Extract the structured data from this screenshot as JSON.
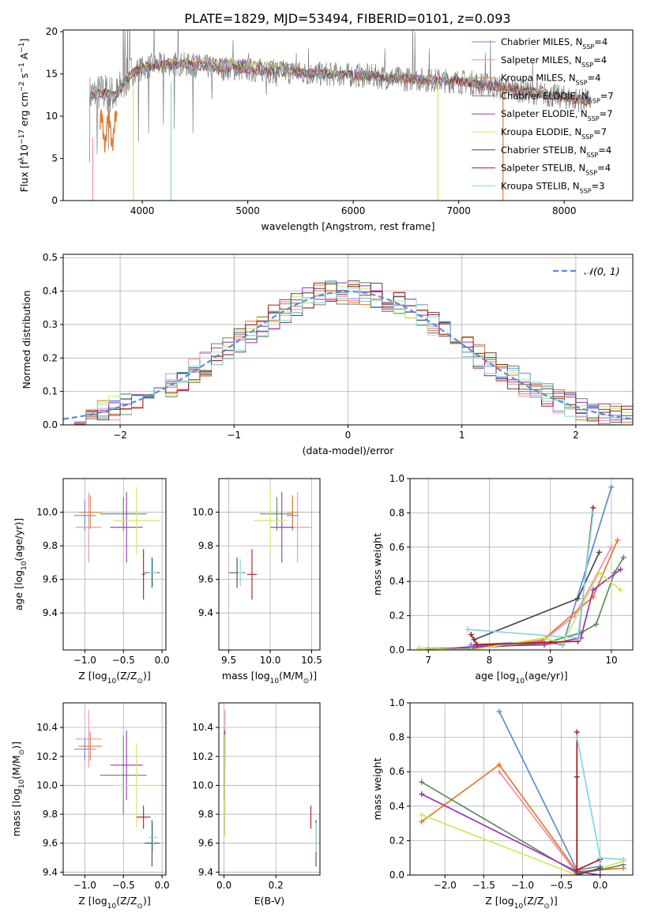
{
  "figure": {
    "title": "PLATE=1829, MJD=53494, FIBERID=0101, z=0.093"
  },
  "colors": {
    "Chabrier MILES": "#5b8bd9",
    "Salpeter MILES": "#f08cb4",
    "Kroupa MILES": "#e8792a",
    "Chabrier ELODIE": "#5f8c5a",
    "Salpeter ELODIE": "#9b2fc0",
    "Kroupa ELODIE": "#cfe85a",
    "Chabrier STELIB": "#4a4a4a",
    "Salpeter STELIB": "#b01818",
    "Kroupa STELIB": "#7fd8df",
    "data": "#808080",
    "normal": "#5b8bd9"
  },
  "chart_data": [
    {
      "id": "spectrum",
      "type": "line",
      "xlabel": "wavelength [Angstrom, rest frame]",
      "ylabel_parts": [
        "Flux [f",
        "λ",
        "10",
        "−17",
        " erg cm",
        "−2",
        " s",
        "−1",
        " A",
        "−1",
        "]"
      ],
      "xlim": [
        3250,
        8650
      ],
      "ylim": [
        0,
        20.2
      ],
      "xticks": [
        4000,
        5000,
        6000,
        7000,
        8000
      ],
      "yticks": [
        0,
        5,
        10,
        15,
        20
      ],
      "grid": false,
      "legend_position": "top-right",
      "legend": [
        {
          "name": "Chabrier MILES",
          "nssp": "4"
        },
        {
          "name": "Salpeter MILES",
          "nssp": "4"
        },
        {
          "name": "Kroupa MILES",
          "nssp": "4"
        },
        {
          "name": "Chabrier ELODIE",
          "nssp": "7"
        },
        {
          "name": "Salpeter ELODIE",
          "nssp": "7"
        },
        {
          "name": "Kroupa ELODIE",
          "nssp": "7"
        },
        {
          "name": "Chabrier STELIB",
          "nssp": "4"
        },
        {
          "name": "Salpeter STELIB",
          "nssp": "4"
        },
        {
          "name": "Kroupa STELIB",
          "nssp": "3"
        }
      ],
      "continuum": [
        [
          3500,
          12.5
        ],
        [
          3650,
          12.8
        ],
        [
          3750,
          12.4
        ],
        [
          3850,
          14.5
        ],
        [
          3950,
          15.5
        ],
        [
          4100,
          16.0
        ],
        [
          4300,
          16.2
        ],
        [
          4500,
          16.0
        ],
        [
          4700,
          15.7
        ],
        [
          4900,
          15.6
        ],
        [
          5100,
          15.4
        ],
        [
          5300,
          15.3
        ],
        [
          5500,
          15.1
        ],
        [
          5700,
          15.0
        ],
        [
          5900,
          14.9
        ],
        [
          6100,
          14.8
        ],
        [
          6300,
          14.6
        ],
        [
          6500,
          14.4
        ],
        [
          6700,
          14.3
        ],
        [
          6900,
          14.2
        ],
        [
          7100,
          14.0
        ],
        [
          7300,
          13.6
        ],
        [
          7500,
          13.2
        ],
        [
          7700,
          12.8
        ],
        [
          7900,
          12.4
        ],
        [
          8100,
          12.0
        ],
        [
          8250,
          11.8
        ]
      ],
      "spikes": [
        [
          3500,
          4.5
        ],
        [
          3570,
          5.5
        ],
        [
          3680,
          6.0
        ],
        [
          3820,
          22
        ],
        [
          3835,
          21
        ],
        [
          3860,
          22
        ],
        [
          3880,
          22
        ],
        [
          3930,
          14
        ],
        [
          3965,
          7.0
        ],
        [
          4060,
          8.0
        ],
        [
          4110,
          22
        ],
        [
          4200,
          9.0
        ],
        [
          4305,
          8.5
        ],
        [
          4340,
          22
        ],
        [
          4480,
          8.0
        ],
        [
          4660,
          12.0
        ],
        [
          4861,
          19
        ],
        [
          5007,
          17.5
        ],
        [
          5175,
          12.5
        ],
        [
          5270,
          13.5
        ],
        [
          5460,
          17.5
        ],
        [
          5577,
          18
        ],
        [
          5893,
          14.5
        ],
        [
          6300,
          18
        ],
        [
          6563,
          21
        ],
        [
          6584,
          20
        ],
        [
          6720,
          18
        ],
        [
          7250,
          17.5
        ],
        [
          7300,
          19
        ],
        [
          7600,
          12
        ],
        [
          7700,
          16.5
        ],
        [
          7800,
          13.5
        ]
      ],
      "model_drops": [
        {
          "series": "Salpeter MILES",
          "x": 3530,
          "from": 7.5,
          "to": 0
        },
        {
          "series": "Kroupa ELODIE",
          "x": 3915,
          "from": 14.5,
          "to": 0
        },
        {
          "series": "Kroupa STELIB",
          "x": 4272,
          "from": 14.0,
          "to": 0
        },
        {
          "series": "Kroupa ELODIE",
          "x": 6803,
          "from": 14.0,
          "to": 0
        },
        {
          "series": "Kroupa MILES",
          "x": 7420,
          "from": 13.5,
          "to": 0
        }
      ]
    },
    {
      "id": "residuals",
      "type": "histogram",
      "xlabel": "(data-model)/error",
      "ylabel": "Normed distribution",
      "xlim": [
        -2.5,
        2.5
      ],
      "ylim": [
        0,
        0.51
      ],
      "xticks": [
        -2,
        -1,
        0,
        1,
        2
      ],
      "yticks": [
        0.0,
        0.1,
        0.2,
        0.3,
        0.4,
        0.5
      ],
      "grid": true,
      "legend_position": "top-right",
      "legend": [
        "𝒩(0, 1)"
      ],
      "bin_width": 0.1,
      "normal_curve": {
        "mean": 0,
        "sigma": 1,
        "style": "dashed"
      }
    },
    {
      "id": "age_vs_Z",
      "type": "scatter",
      "xlabel_parts": [
        "Z [log",
        "10",
        "(Z/Z",
        "⊙",
        ")]"
      ],
      "ylabel_parts": [
        "age  [log",
        "10",
        "(age/yr)]"
      ],
      "xlim": [
        -1.28,
        0.05
      ],
      "ylim": [
        9.18,
        10.2
      ],
      "xticks": [
        -1.0,
        -0.5,
        0.0
      ],
      "yticks": [
        9.4,
        9.6,
        9.8,
        10.0
      ],
      "grid": true,
      "points": [
        {
          "series": "Chabrier MILES",
          "x": -1.0,
          "y": 9.98,
          "xerr": 0.14,
          "yerr": 0.09
        },
        {
          "series": "Salpeter MILES",
          "x": -0.95,
          "y": 9.91,
          "xerr": 0.17,
          "yerr": 0.21
        },
        {
          "series": "Kroupa MILES",
          "x": -0.93,
          "y": 10.0,
          "xerr": 0.15,
          "yerr": 0.1
        },
        {
          "series": "Chabrier ELODIE",
          "x": -0.5,
          "y": 9.99,
          "xerr": 0.3,
          "yerr": 0.1
        },
        {
          "series": "Salpeter ELODIE",
          "x": -0.46,
          "y": 9.91,
          "xerr": 0.21,
          "yerr": 0.21
        },
        {
          "series": "Kroupa ELODIE",
          "x": -0.33,
          "y": 9.95,
          "xerr": 0.3,
          "yerr": 0.2
        },
        {
          "series": "Chabrier STELIB",
          "x": -0.13,
          "y": 9.64,
          "xerr": 0.1,
          "yerr": 0.09
        },
        {
          "series": "Salpeter STELIB",
          "x": -0.24,
          "y": 9.63,
          "xerr": 0.02,
          "yerr": 0.15
        },
        {
          "series": "Kroupa STELIB",
          "x": -0.12,
          "y": 9.64,
          "xerr": 0.06,
          "yerr": 0.08
        }
      ]
    },
    {
      "id": "age_vs_mass",
      "type": "scatter",
      "xlabel_parts": [
        "mass [log",
        "10",
        "(M/M",
        "⊙",
        ")]"
      ],
      "ylabel_parts": [],
      "xlim": [
        9.38,
        10.6
      ],
      "ylim": [
        9.18,
        10.2
      ],
      "xticks": [
        9.5,
        10.0,
        10.5
      ],
      "yticks": [
        9.4,
        9.6,
        9.8,
        10.0
      ],
      "grid": true,
      "points": [
        {
          "series": "Chabrier MILES",
          "x": 10.27,
          "y": 9.98,
          "xerr": 0.07,
          "yerr": 0.09
        },
        {
          "series": "Salpeter MILES",
          "x": 10.33,
          "y": 9.91,
          "xerr": 0.17,
          "yerr": 0.21
        },
        {
          "series": "Kroupa MILES",
          "x": 10.27,
          "y": 10.0,
          "xerr": 0.07,
          "yerr": 0.1
        },
        {
          "series": "Chabrier ELODIE",
          "x": 10.08,
          "y": 9.99,
          "xerr": 0.2,
          "yerr": 0.1
        },
        {
          "series": "Salpeter ELODIE",
          "x": 10.14,
          "y": 9.91,
          "xerr": 0.14,
          "yerr": 0.21
        },
        {
          "series": "Kroupa ELODIE",
          "x": 10.0,
          "y": 9.95,
          "xerr": 0.2,
          "yerr": 0.2
        },
        {
          "series": "Chabrier STELIB",
          "x": 9.6,
          "y": 9.64,
          "xerr": 0.1,
          "yerr": 0.09
        },
        {
          "series": "Salpeter STELIB",
          "x": 9.78,
          "y": 9.63,
          "xerr": 0.06,
          "yerr": 0.15
        },
        {
          "series": "Kroupa STELIB",
          "x": 9.64,
          "y": 9.64,
          "xerr": 0.03,
          "yerr": 0.08
        }
      ]
    },
    {
      "id": "massweight_vs_age",
      "type": "line",
      "xlabel_parts": [
        "age  [log",
        "10",
        "(age/yr)]"
      ],
      "ylabel": "mass weight",
      "xlim": [
        6.7,
        10.35
      ],
      "ylim": [
        0,
        1.0
      ],
      "xticks": [
        7,
        8,
        9,
        10
      ],
      "yticks": [
        0.0,
        0.2,
        0.4,
        0.6,
        0.8,
        1.0
      ],
      "grid": true,
      "series": [
        {
          "name": "Chabrier MILES",
          "x": [
            7.7,
            8.85,
            9.2,
            10.0
          ],
          "y": [
            0.03,
            0.05,
            0.03,
            0.95
          ]
        },
        {
          "name": "Salpeter MILES",
          "x": [
            7.75,
            8.9,
            9.4,
            10.0
          ],
          "y": [
            0.01,
            0.06,
            0.2,
            0.6
          ]
        },
        {
          "name": "Kroupa MILES",
          "x": [
            7.75,
            8.85,
            9.7,
            10.1
          ],
          "y": [
            0.02,
            0.05,
            0.31,
            0.64
          ]
        },
        {
          "name": "Chabrier ELODIE",
          "x": [
            6.85,
            7.75,
            8.9,
            9.5,
            9.75,
            10.05,
            10.2
          ],
          "y": [
            0.01,
            0.01,
            0.04,
            0.1,
            0.15,
            0.45,
            0.54
          ]
        },
        {
          "name": "Salpeter ELODIE",
          "x": [
            7.0,
            7.75,
            8.9,
            9.5,
            9.7,
            10.15
          ],
          "y": [
            0.0,
            0.02,
            0.03,
            0.07,
            0.35,
            0.47
          ]
        },
        {
          "name": "Kroupa ELODIE",
          "x": [
            6.85,
            7.7,
            8.9,
            9.2,
            9.8,
            10.15
          ],
          "y": [
            0.01,
            0.0,
            0.07,
            0.04,
            0.45,
            0.35
          ]
        },
        {
          "name": "Chabrier STELIB",
          "x": [
            7.75,
            9.45,
            9.8
          ],
          "y": [
            0.06,
            0.3,
            0.57
          ]
        },
        {
          "name": "Salpeter STELIB",
          "x": [
            7.7,
            7.8,
            9.45,
            9.7
          ],
          "y": [
            0.09,
            0.03,
            0.05,
            0.83
          ]
        },
        {
          "name": "Kroupa STELIB",
          "x": [
            7.65,
            9.45,
            9.7
          ],
          "y": [
            0.12,
            0.07,
            0.8
          ]
        }
      ]
    },
    {
      "id": "mass_vs_Z",
      "type": "scatter",
      "xlabel_parts": [
        "Z [log",
        "10",
        "(Z/Z",
        "⊙",
        ")]"
      ],
      "ylabel_parts": [
        "mass [log",
        "10",
        "(M/M",
        "⊙",
        ")]"
      ],
      "xlim": [
        -1.28,
        0.05
      ],
      "ylim": [
        9.38,
        10.57
      ],
      "xticks": [
        -1.0,
        -0.5,
        0.0
      ],
      "yticks": [
        9.4,
        9.6,
        9.8,
        10.0,
        10.2,
        10.4
      ],
      "grid": true,
      "points": [
        {
          "series": "Chabrier MILES",
          "x": -1.0,
          "y": 10.25,
          "xerr": 0.14,
          "yerr": 0.08
        },
        {
          "series": "Salpeter MILES",
          "x": -0.95,
          "y": 10.32,
          "xerr": 0.17,
          "yerr": 0.2
        },
        {
          "series": "Kroupa MILES",
          "x": -0.93,
          "y": 10.27,
          "xerr": 0.15,
          "yerr": 0.1
        },
        {
          "series": "Chabrier ELODIE",
          "x": -0.5,
          "y": 10.07,
          "xerr": 0.3,
          "yerr": 0.27
        },
        {
          "series": "Salpeter ELODIE",
          "x": -0.46,
          "y": 10.14,
          "xerr": 0.21,
          "yerr": 0.24
        },
        {
          "series": "Kroupa ELODIE",
          "x": -0.33,
          "y": 10.0,
          "xerr": 0.3,
          "yerr": 0.29
        },
        {
          "series": "Chabrier STELIB",
          "x": -0.13,
          "y": 9.6,
          "xerr": 0.1,
          "yerr": 0.16
        },
        {
          "series": "Salpeter STELIB",
          "x": -0.24,
          "y": 9.78,
          "xerr": 0.09,
          "yerr": 0.08
        },
        {
          "series": "Kroupa STELIB",
          "x": -0.12,
          "y": 9.64,
          "xerr": 0.06,
          "yerr": 0.1
        }
      ]
    },
    {
      "id": "mass_vs_ebv",
      "type": "scatter",
      "xlabel": "E(B-V)",
      "ylabel_parts": [],
      "xlim": [
        -0.02,
        0.37
      ],
      "ylim": [
        9.38,
        10.57
      ],
      "xticks": [
        0.0,
        0.2
      ],
      "yticks": [
        9.4,
        9.6,
        9.8,
        10.0,
        10.2,
        10.4
      ],
      "grid": true,
      "points": [
        {
          "series": "Chabrier MILES",
          "x": 0.003,
          "y": 10.25,
          "xerr": 0,
          "yerr": 0.08
        },
        {
          "series": "Salpeter MILES",
          "x": 0.004,
          "y": 10.32,
          "xerr": 0,
          "yerr": 0.2
        },
        {
          "series": "Kroupa MILES",
          "x": 0.002,
          "y": 10.27,
          "xerr": 0,
          "yerr": 0.1
        },
        {
          "series": "Chabrier ELODIE",
          "x": 0.003,
          "y": 10.07,
          "xerr": 0,
          "yerr": 0.27
        },
        {
          "series": "Salpeter ELODIE",
          "x": 0.002,
          "y": 10.14,
          "xerr": 0,
          "yerr": 0.24
        },
        {
          "series": "Kroupa ELODIE",
          "x": 0.003,
          "y": 10.0,
          "xerr": 0,
          "yerr": 0.35
        },
        {
          "series": "Chabrier STELIB",
          "x": 0.355,
          "y": 9.6,
          "xerr": 0,
          "yerr": 0.16
        },
        {
          "series": "Salpeter STELIB",
          "x": 0.335,
          "y": 9.78,
          "xerr": 0,
          "yerr": 0.08
        },
        {
          "series": "Kroupa STELIB",
          "x": 0.355,
          "y": 9.64,
          "xerr": 0,
          "yerr": 0.1
        }
      ]
    },
    {
      "id": "massweight_vs_Z",
      "type": "line",
      "xlabel_parts": [
        "Z [log",
        "10",
        "(Z/Z",
        "⊙",
        ")]"
      ],
      "ylabel": "mass weight",
      "xlim": [
        -2.45,
        0.42
      ],
      "ylim": [
        0,
        1.0
      ],
      "xticks": [
        -2.0,
        -1.5,
        -1.0,
        -0.5,
        0.0
      ],
      "yticks": [
        0.0,
        0.2,
        0.4,
        0.6,
        0.8,
        1.0
      ],
      "grid": true,
      "series": [
        {
          "name": "Chabrier MILES",
          "x": [
            -1.3,
            -0.3,
            0.0
          ],
          "y": [
            0.95,
            0.03,
            0.05
          ]
        },
        {
          "name": "Salpeter MILES",
          "x": [
            -1.3,
            -0.3,
            0.0
          ],
          "y": [
            0.6,
            0.01,
            0.03
          ]
        },
        {
          "name": "Kroupa MILES",
          "x": [
            -2.3,
            -1.3,
            -0.3,
            0.3
          ],
          "y": [
            0.31,
            0.64,
            0.02,
            0.04
          ]
        },
        {
          "name": "Chabrier ELODIE",
          "x": [
            -2.3,
            -0.3,
            0.0,
            0.3
          ],
          "y": [
            0.54,
            0.01,
            0.03,
            0.06
          ]
        },
        {
          "name": "Salpeter ELODIE",
          "x": [
            -2.3,
            -0.3,
            0.0
          ],
          "y": [
            0.47,
            0.02,
            0.0
          ]
        },
        {
          "name": "Kroupa ELODIE",
          "x": [
            -2.3,
            -0.3,
            0.3
          ],
          "y": [
            0.35,
            0.0,
            0.08
          ]
        },
        {
          "name": "Chabrier STELIB",
          "x": [
            -0.3,
            -0.3,
            0.0
          ],
          "y": [
            0.57,
            0.0,
            0.04
          ]
        },
        {
          "name": "Salpeter STELIB",
          "x": [
            -0.3,
            -0.3,
            0.0
          ],
          "y": [
            0.83,
            0.03,
            0.09
          ]
        },
        {
          "name": "Kroupa STELIB",
          "x": [
            -0.3,
            0.0,
            0.3
          ],
          "y": [
            0.8,
            0.1,
            0.09
          ]
        }
      ]
    }
  ]
}
